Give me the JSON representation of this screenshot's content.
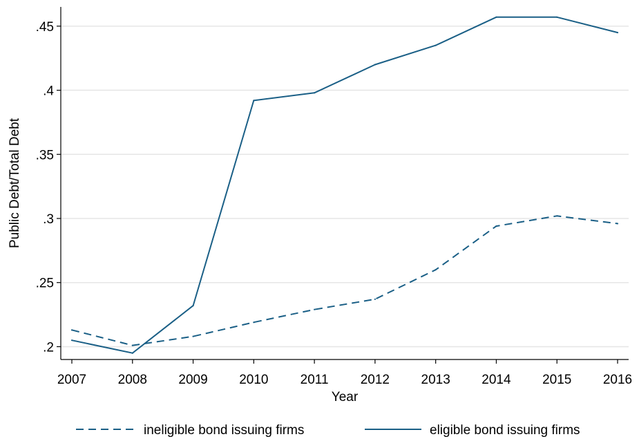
{
  "chart_data": {
    "type": "line",
    "title": "",
    "xlabel": "Year",
    "ylabel": "Public Debt/Total Debt",
    "x": [
      2007,
      2008,
      2009,
      2010,
      2011,
      2012,
      2013,
      2014,
      2015,
      2016
    ],
    "x_tick_labels": [
      "2007",
      "2008",
      "2009",
      "2010",
      "2011",
      "2012",
      "2013",
      "2014",
      "2015",
      "2016"
    ],
    "y_ticks": [
      0.2,
      0.25,
      0.3,
      0.35,
      0.4,
      0.45
    ],
    "y_tick_labels": [
      ".2",
      ".25",
      ".3",
      ".35",
      ".4",
      ".45"
    ],
    "xlim": [
      2007,
      2016
    ],
    "ylim": [
      0.19,
      0.465
    ],
    "grid": "horizontal",
    "legend_position": "bottom",
    "series": [
      {
        "name": "ineligible bond issuing firms",
        "style": "dashed",
        "color": "#1a5f86",
        "values": [
          0.213,
          0.201,
          0.208,
          0.219,
          0.229,
          0.237,
          0.26,
          0.294,
          0.302,
          0.296
        ]
      },
      {
        "name": "eligible bond issuing firms",
        "style": "solid",
        "color": "#1a5f86",
        "values": [
          0.205,
          0.195,
          0.232,
          0.392,
          0.398,
          0.42,
          0.435,
          0.457,
          0.457,
          0.445
        ]
      }
    ]
  }
}
